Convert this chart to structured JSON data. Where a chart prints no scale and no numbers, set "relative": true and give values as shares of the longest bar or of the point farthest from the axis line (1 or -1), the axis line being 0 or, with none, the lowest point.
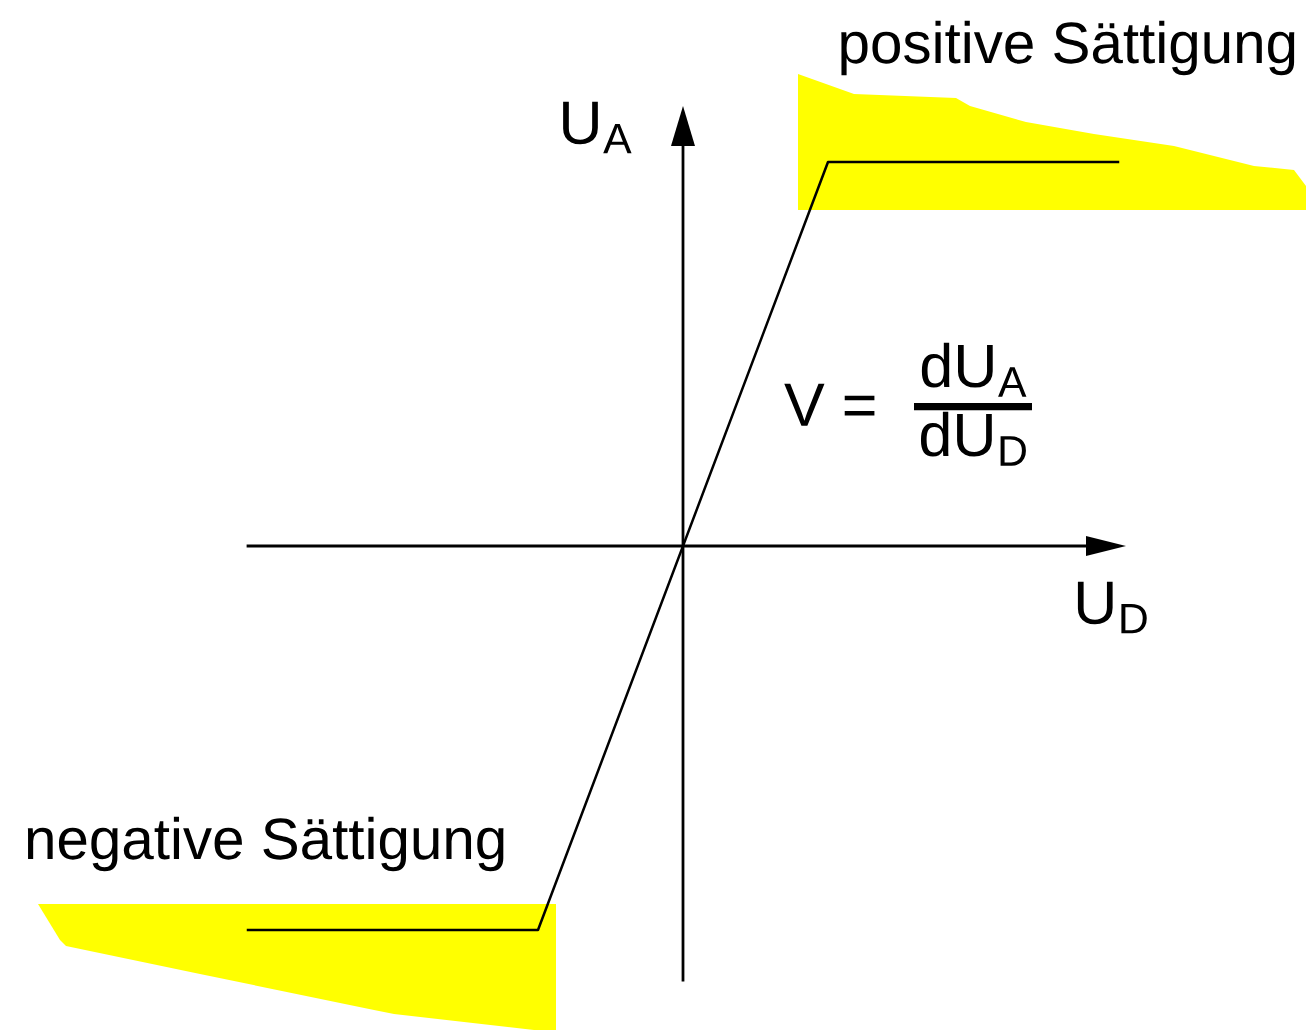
{
  "chart_data": {
    "type": "line",
    "relative": true,
    "tick_labels": false,
    "xlabel": "U$_{D}$",
    "ylabel": "U$_{A}$",
    "annotations": [
      "positive Sättigung",
      "V =",
      "dU$_{A}$",
      "dU$_{D}$",
      "negative Sättigung"
    ],
    "categories": [
      null,
      null,
      null,
      null
    ],
    "series": [
      {
        "color": "#000000",
        "values": [
          -1,
          -1,
          1,
          1
        ]
      }
    ]
  }
}
